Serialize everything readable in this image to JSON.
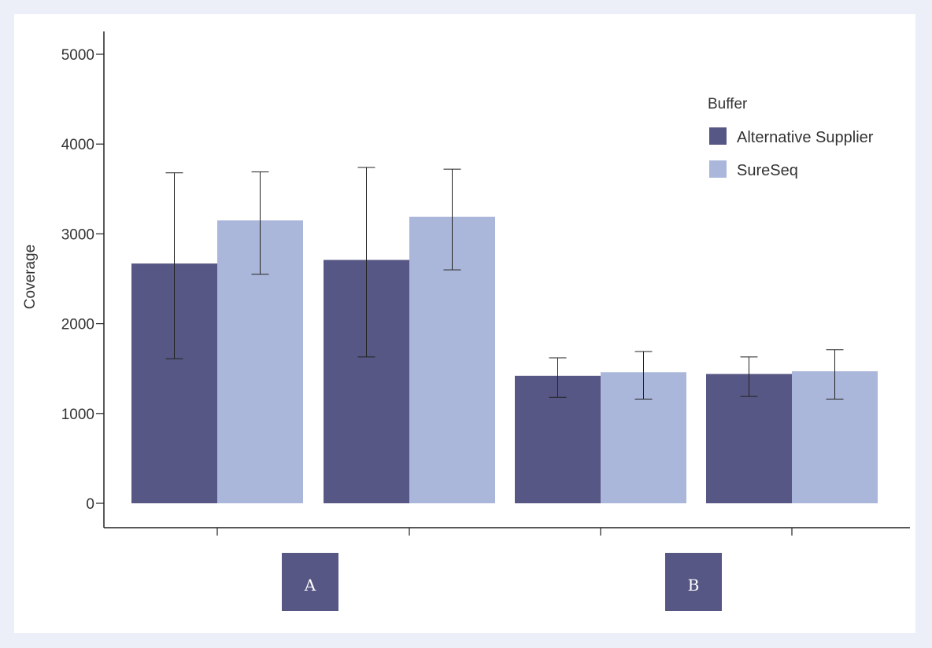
{
  "chart_data": {
    "type": "bar",
    "ylabel": "Coverage",
    "xlabel": "",
    "ylim": [
      0,
      5000
    ],
    "yticks": [
      0,
      1000,
      2000,
      3000,
      4000,
      5000
    ],
    "grid": false,
    "groups": [
      {
        "label": "A"
      },
      {
        "label": "B"
      }
    ],
    "categories": [
      "",
      "",
      "",
      ""
    ],
    "legend": {
      "title": "Buffer",
      "position": "top-right"
    },
    "series": [
      {
        "name": "Alternative Supplier",
        "color": "#575785",
        "values": [
          2670,
          2710,
          1420,
          1440
        ],
        "err_low": [
          1610,
          1630,
          1180,
          1190
        ],
        "err_high": [
          3680,
          3740,
          1620,
          1630
        ]
      },
      {
        "name": "SureSeq",
        "color": "#abb7da",
        "values": [
          3150,
          3190,
          1460,
          1470
        ],
        "err_low": [
          2550,
          2600,
          1160,
          1160
        ],
        "err_high": [
          3690,
          3720,
          1690,
          1710
        ]
      }
    ]
  }
}
